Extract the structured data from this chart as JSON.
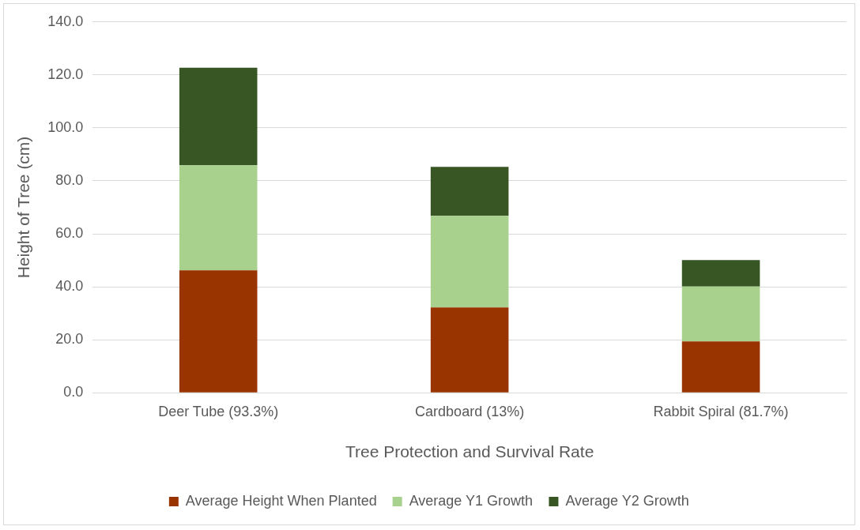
{
  "chart_data": {
    "type": "bar",
    "stacked": true,
    "xlabel": "Tree Protection and Survival Rate",
    "ylabel": "Height of Tree (cm)",
    "categories": [
      "Deer Tube (93.3%)",
      "Cardboard (13%)",
      "Rabbit Spiral (81.7%)"
    ],
    "series": [
      {
        "name": "Average Height When Planted",
        "color": "#993300",
        "values": [
          46.2,
          32.2,
          19.4
        ]
      },
      {
        "name": "Average Y1 Growth",
        "color": "#a9d18e",
        "values": [
          39.7,
          34.6,
          20.7
        ]
      },
      {
        "name": "Average Y2 Growth",
        "color": "#375623",
        "values": [
          36.8,
          18.5,
          10.0
        ]
      }
    ],
    "ylim": [
      0,
      140
    ],
    "yticks": [
      {
        "value": 0,
        "label": "0.0"
      },
      {
        "value": 20,
        "label": "20.0"
      },
      {
        "value": 40,
        "label": "40.0"
      },
      {
        "value": 60,
        "label": "60.0"
      },
      {
        "value": 80,
        "label": "80.0"
      },
      {
        "value": 100,
        "label": "100.0"
      },
      {
        "value": 120,
        "label": "120.0"
      },
      {
        "value": 140,
        "label": "140.0"
      }
    ],
    "grid": "y",
    "legend": "bottom"
  }
}
